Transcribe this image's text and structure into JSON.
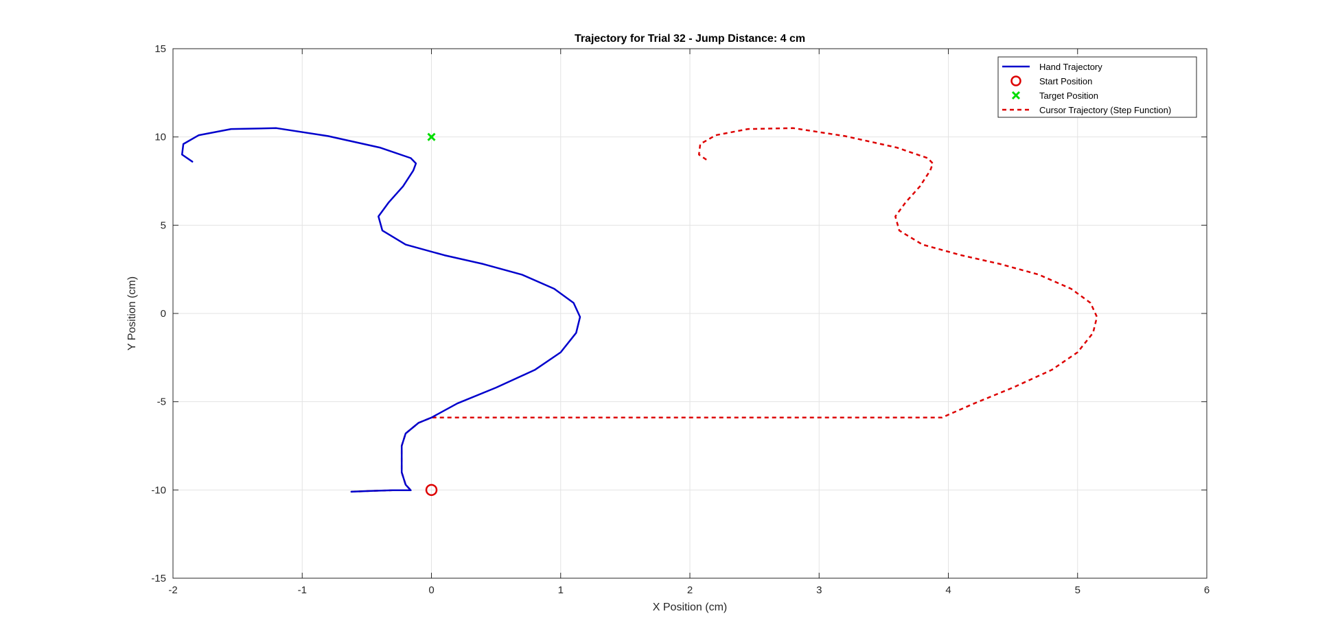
{
  "chart_data": {
    "type": "line",
    "title": "Trajectory for Trial 32 - Jump Distance: 4 cm",
    "xlabel": "X Position (cm)",
    "ylabel": "Y Position (cm)",
    "xlim": [
      -2,
      6
    ],
    "ylim": [
      -15,
      15
    ],
    "xticks": [
      -2,
      -1,
      0,
      1,
      2,
      3,
      4,
      5,
      6
    ],
    "yticks": [
      -15,
      -10,
      -5,
      0,
      5,
      10,
      15
    ],
    "grid": true,
    "legend_position": "top-right",
    "series": [
      {
        "name": "Hand Trajectory",
        "style": "solid",
        "color": "#0000CC",
        "x": [
          -0.62,
          -0.45,
          -0.3,
          -0.16,
          -0.2,
          -0.23,
          -0.23,
          -0.2,
          -0.1,
          0.0,
          0.2,
          0.5,
          0.8,
          1.0,
          1.12,
          1.15,
          1.1,
          0.95,
          0.7,
          0.4,
          0.1,
          -0.2,
          -0.38,
          -0.41,
          -0.33,
          -0.22,
          -0.14,
          -0.12,
          -0.16,
          -0.4,
          -0.8,
          -1.2,
          -1.55,
          -1.8,
          -1.92,
          -1.93,
          -1.85
        ],
        "y": [
          -10.1,
          -10.05,
          -10.02,
          -10.02,
          -9.7,
          -9.0,
          -7.5,
          -6.8,
          -6.2,
          -5.9,
          -5.1,
          -4.2,
          -3.2,
          -2.2,
          -1.1,
          -0.2,
          0.6,
          1.4,
          2.2,
          2.8,
          3.3,
          3.9,
          4.7,
          5.5,
          6.3,
          7.2,
          8.1,
          8.5,
          8.8,
          9.4,
          10.05,
          10.5,
          10.45,
          10.1,
          9.6,
          9.0,
          8.6
        ]
      },
      {
        "name": "Start Position",
        "style": "marker-circle",
        "color": "#DD0000",
        "x": [
          0
        ],
        "y": [
          -10
        ]
      },
      {
        "name": "Target Position",
        "style": "marker-x",
        "color": "#00DD00",
        "x": [
          0
        ],
        "y": [
          10
        ]
      },
      {
        "name": "Cursor Trajectory (Step Function)",
        "style": "dashed",
        "color": "#DD0000",
        "x": [
          -0.62,
          -0.45,
          -0.3,
          -0.16,
          -0.2,
          -0.23,
          -0.23,
          -0.2,
          -0.1,
          0.0,
          3.95,
          4.2,
          4.5,
          4.8,
          5.0,
          5.12,
          5.15,
          5.1,
          4.95,
          4.7,
          4.4,
          4.1,
          3.8,
          3.62,
          3.59,
          3.67,
          3.78,
          3.86,
          3.88,
          3.84,
          3.6,
          3.2,
          2.8,
          2.45,
          2.2,
          2.08,
          2.07,
          2.15
        ],
        "y": [
          -10.1,
          -10.05,
          -10.02,
          -10.02,
          -9.7,
          -9.0,
          -7.5,
          -6.8,
          -6.2,
          -5.9,
          -5.9,
          -5.1,
          -4.2,
          -3.2,
          -2.2,
          -1.1,
          -0.2,
          0.6,
          1.4,
          2.2,
          2.8,
          3.3,
          3.9,
          4.7,
          5.5,
          6.3,
          7.2,
          8.1,
          8.5,
          8.8,
          9.4,
          10.05,
          10.5,
          10.45,
          10.1,
          9.6,
          9.0,
          8.6
        ]
      }
    ]
  }
}
